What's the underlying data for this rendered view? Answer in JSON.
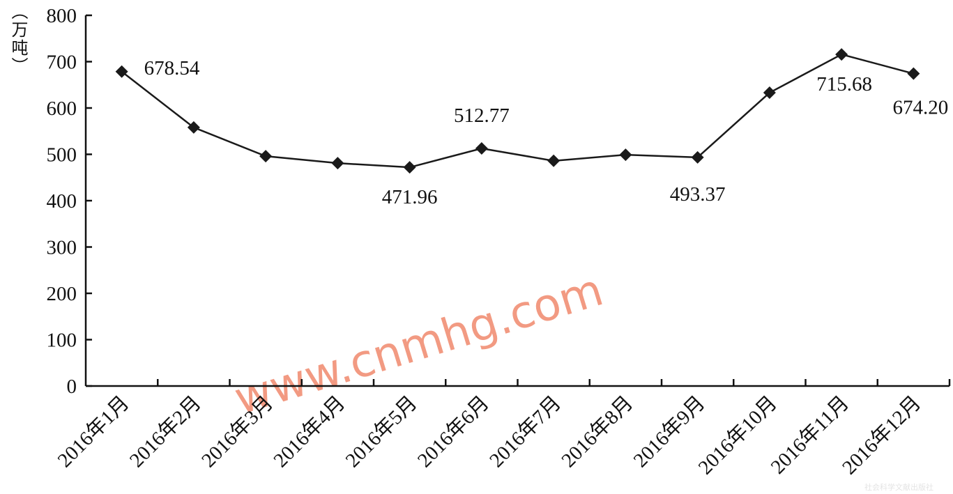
{
  "chart_data": {
    "type": "line",
    "title": "",
    "xlabel": "",
    "ylabel": "（万吨）",
    "ylim": [
      0,
      800
    ],
    "yticks": [
      0,
      100,
      200,
      300,
      400,
      500,
      600,
      700,
      800
    ],
    "grid": false,
    "categories": [
      "2016年1月",
      "2016年2月",
      "2016年3月",
      "2016年4月",
      "2016年5月",
      "2016年6月",
      "2016年7月",
      "2016年8月",
      "2016年9月",
      "2016年10月",
      "2016年11月",
      "2016年12月"
    ],
    "series": [
      {
        "values": [
          678.54,
          558,
          496,
          481,
          471.96,
          512.77,
          486,
          499,
          493.37,
          633,
          715.68,
          674.2
        ],
        "color": "#1a1a1a",
        "marker": "diamond"
      }
    ],
    "data_labels": [
      {
        "index": 0,
        "text": "678.54"
      },
      {
        "index": 4,
        "text": "471.96"
      },
      {
        "index": 5,
        "text": "512.77"
      },
      {
        "index": 8,
        "text": "493.37"
      },
      {
        "index": 10,
        "text": "715.68"
      },
      {
        "index": 11,
        "text": "674.20"
      }
    ]
  },
  "watermark": {
    "text": "www.cnmhg.com",
    "color": "#f29a82"
  },
  "publisher_mark": "社会科学文献出版社"
}
